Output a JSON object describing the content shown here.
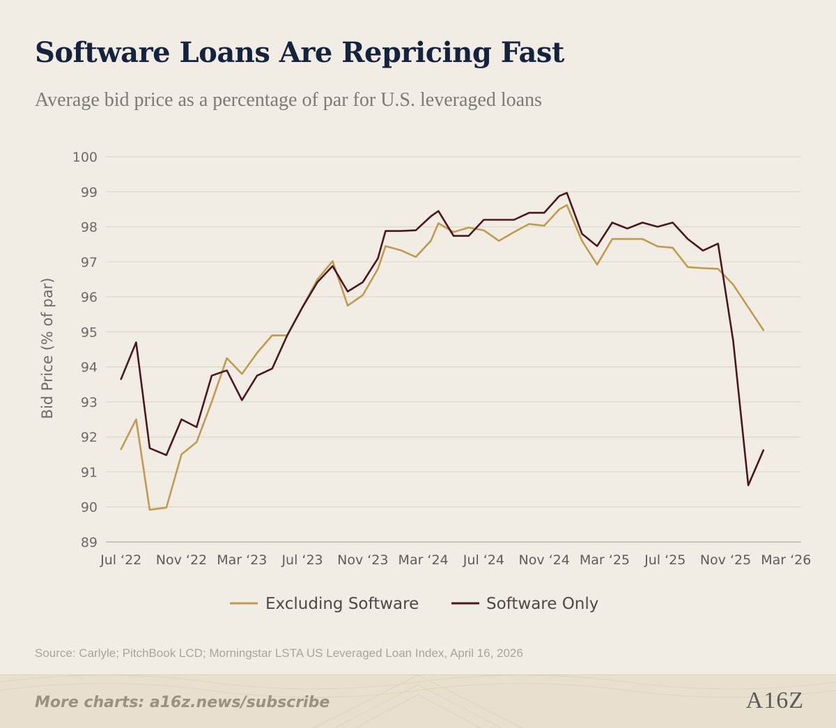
{
  "header": {
    "title": "Software Loans Are Repricing Fast",
    "subtitle": "Average bid price as a percentage of par for U.S. leveraged loans"
  },
  "chart_data": {
    "type": "line",
    "ylabel": "Bid Price (% of par)",
    "ylim": [
      89,
      100
    ],
    "yticks": [
      89,
      90,
      91,
      92,
      93,
      94,
      95,
      96,
      97,
      98,
      99,
      100
    ],
    "xlim": [
      0,
      46
    ],
    "xticks": [
      {
        "label": "Jul ‘22",
        "x": 1
      },
      {
        "label": "Nov ‘22",
        "x": 5
      },
      {
        "label": "Mar ‘23",
        "x": 9
      },
      {
        "label": "Jul ‘23",
        "x": 13
      },
      {
        "label": "Nov ‘23",
        "x": 17
      },
      {
        "label": "Mar ‘24",
        "x": 21
      },
      {
        "label": "Jul ‘24",
        "x": 25
      },
      {
        "label": "Nov ‘24",
        "x": 29
      },
      {
        "label": "Mar ‘25",
        "x": 33
      },
      {
        "label": "Jul ‘25",
        "x": 37
      },
      {
        "label": "Nov ‘25",
        "x": 41
      },
      {
        "label": "Mar ‘26",
        "x": 45
      }
    ],
    "grid": "horizontal",
    "legend": "bottom-center",
    "series": [
      {
        "name": "Excluding Software",
        "color": "#c19a52",
        "points": [
          [
            1,
            91.65
          ],
          [
            2,
            92.5
          ],
          [
            2.9,
            89.92
          ],
          [
            4,
            89.98
          ],
          [
            5,
            91.5
          ],
          [
            6,
            91.85
          ],
          [
            7,
            93.0
          ],
          [
            8,
            94.25
          ],
          [
            9,
            93.8
          ],
          [
            10,
            94.4
          ],
          [
            11,
            94.9
          ],
          [
            12,
            94.9
          ],
          [
            13,
            95.7
          ],
          [
            14,
            96.5
          ],
          [
            15,
            97.02
          ],
          [
            16,
            95.75
          ],
          [
            17,
            96.05
          ],
          [
            18,
            96.8
          ],
          [
            18.5,
            97.45
          ],
          [
            19.5,
            97.33
          ],
          [
            20.5,
            97.14
          ],
          [
            21.5,
            97.6
          ],
          [
            22,
            98.1
          ],
          [
            23,
            97.85
          ],
          [
            24,
            97.98
          ],
          [
            25,
            97.9
          ],
          [
            26,
            97.6
          ],
          [
            27,
            97.85
          ],
          [
            28,
            98.08
          ],
          [
            29,
            98.03
          ],
          [
            30,
            98.5
          ],
          [
            30.5,
            98.62
          ],
          [
            31.5,
            97.6
          ],
          [
            32.5,
            96.92
          ],
          [
            33.5,
            97.65
          ],
          [
            34.5,
            97.65
          ],
          [
            35.5,
            97.65
          ],
          [
            36.5,
            97.44
          ],
          [
            37.5,
            97.4
          ],
          [
            38.5,
            96.85
          ],
          [
            39.5,
            96.82
          ],
          [
            40.5,
            96.8
          ],
          [
            41.5,
            96.35
          ],
          [
            42.5,
            95.7
          ],
          [
            43.5,
            95.05
          ]
        ]
      },
      {
        "name": "Software Only",
        "color": "#4a1620",
        "points": [
          [
            1,
            93.65
          ],
          [
            2,
            94.7
          ],
          [
            2.9,
            91.68
          ],
          [
            4,
            91.48
          ],
          [
            5,
            92.5
          ],
          [
            6,
            92.28
          ],
          [
            7,
            93.75
          ],
          [
            8,
            93.9
          ],
          [
            9,
            93.05
          ],
          [
            10,
            93.75
          ],
          [
            11,
            93.95
          ],
          [
            12,
            94.9
          ],
          [
            13,
            95.7
          ],
          [
            14,
            96.42
          ],
          [
            15,
            96.88
          ],
          [
            16,
            96.15
          ],
          [
            17,
            96.42
          ],
          [
            18,
            97.1
          ],
          [
            18.5,
            97.88
          ],
          [
            19.5,
            97.88
          ],
          [
            20.5,
            97.9
          ],
          [
            21.5,
            98.3
          ],
          [
            22,
            98.45
          ],
          [
            23,
            97.74
          ],
          [
            24,
            97.74
          ],
          [
            25,
            98.2
          ],
          [
            26,
            98.2
          ],
          [
            27,
            98.2
          ],
          [
            28,
            98.4
          ],
          [
            29,
            98.4
          ],
          [
            30,
            98.88
          ],
          [
            30.5,
            98.97
          ],
          [
            31.5,
            97.8
          ],
          [
            32.5,
            97.45
          ],
          [
            33.5,
            98.12
          ],
          [
            34.5,
            97.95
          ],
          [
            35.5,
            98.12
          ],
          [
            36.5,
            98.0
          ],
          [
            37.5,
            98.12
          ],
          [
            38.5,
            97.65
          ],
          [
            39.5,
            97.32
          ],
          [
            40.5,
            97.52
          ],
          [
            41.5,
            94.75
          ],
          [
            42.5,
            90.62
          ],
          [
            43.5,
            91.62
          ]
        ]
      }
    ]
  },
  "source": "Source: Carlyle; PitchBook LCD; Morningstar LSTA US Leveraged Loan Index, April 16, 2026",
  "footer": {
    "cta": "More charts: a16z.news/subscribe",
    "logo": "A16Z"
  }
}
